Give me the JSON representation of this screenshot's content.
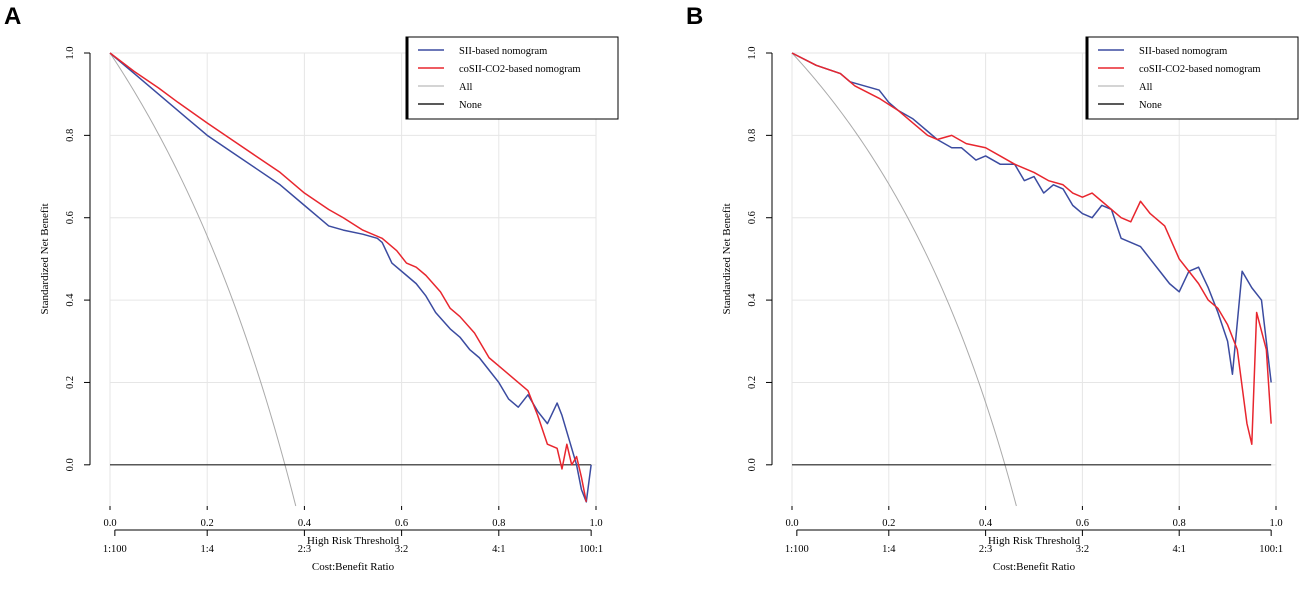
{
  "chart_data": [
    {
      "panel": "A",
      "type": "line",
      "xlabel": "High Risk Threshold",
      "ylabel": "Standardized Net Benefit",
      "x2label": "Cost:Benefit Ratio",
      "xlim": [
        0,
        1
      ],
      "ylim": [
        -0.1,
        1.0
      ],
      "xticks": [
        0.0,
        0.2,
        0.4,
        0.6,
        0.8,
        1.0
      ],
      "xtick_labels": [
        "0.0",
        "0.2",
        "0.4",
        "0.6",
        "0.8",
        "1.0"
      ],
      "yticks": [
        0.0,
        0.2,
        0.4,
        0.6,
        0.8,
        1.0
      ],
      "ytick_labels": [
        "0.0",
        "0.2",
        "0.4",
        "0.6",
        "0.8",
        "1.0"
      ],
      "cost_benefit_ticks": [
        0.01,
        0.2,
        0.4,
        0.6,
        0.8,
        0.99
      ],
      "cost_benefit_labels": [
        "1:100",
        "1:4",
        "2:3",
        "3:2",
        "4:1",
        "100:1"
      ],
      "grid": true,
      "legend_position": "top-right",
      "all_prevalence": 0.36,
      "series": [
        {
          "name": "SII-based nomogram",
          "color": "#3b4ba0",
          "x": [
            0.0,
            0.05,
            0.1,
            0.13,
            0.16,
            0.2,
            0.25,
            0.3,
            0.35,
            0.4,
            0.43,
            0.45,
            0.48,
            0.52,
            0.55,
            0.56,
            0.58,
            0.61,
            0.63,
            0.65,
            0.67,
            0.7,
            0.72,
            0.74,
            0.76,
            0.78,
            0.8,
            0.82,
            0.84,
            0.86,
            0.88,
            0.9,
            0.92,
            0.93,
            0.95,
            0.96,
            0.97,
            0.98,
            0.99
          ],
          "y": [
            1.0,
            0.95,
            0.9,
            0.87,
            0.84,
            0.8,
            0.76,
            0.72,
            0.68,
            0.63,
            0.6,
            0.58,
            0.57,
            0.56,
            0.55,
            0.54,
            0.49,
            0.46,
            0.44,
            0.41,
            0.37,
            0.33,
            0.31,
            0.28,
            0.26,
            0.23,
            0.2,
            0.16,
            0.14,
            0.17,
            0.13,
            0.1,
            0.15,
            0.12,
            0.04,
            0.0,
            -0.06,
            -0.09,
            0.0
          ]
        },
        {
          "name": "coSII-CO2-based nomogram",
          "color": "#e8262e",
          "x": [
            0.0,
            0.05,
            0.1,
            0.14,
            0.2,
            0.25,
            0.3,
            0.35,
            0.4,
            0.45,
            0.48,
            0.52,
            0.56,
            0.59,
            0.61,
            0.63,
            0.65,
            0.68,
            0.7,
            0.72,
            0.75,
            0.78,
            0.8,
            0.82,
            0.84,
            0.86,
            0.88,
            0.9,
            0.92,
            0.93,
            0.94,
            0.95,
            0.96,
            0.97,
            0.98
          ],
          "y": [
            1.0,
            0.955,
            0.915,
            0.88,
            0.83,
            0.79,
            0.75,
            0.71,
            0.66,
            0.62,
            0.6,
            0.57,
            0.55,
            0.52,
            0.49,
            0.48,
            0.46,
            0.42,
            0.38,
            0.36,
            0.32,
            0.26,
            0.24,
            0.22,
            0.2,
            0.18,
            0.12,
            0.05,
            0.04,
            -0.01,
            0.05,
            0.0,
            0.02,
            -0.03,
            -0.09
          ]
        },
        {
          "name": "All",
          "color": "#aaaaaa"
        },
        {
          "name": "None",
          "color": "#222222"
        }
      ]
    },
    {
      "panel": "B",
      "type": "line",
      "xlabel": "High Risk Threshold",
      "ylabel": "Standardized Net Benefit",
      "x2label": "Cost:Benefit Ratio",
      "xlim": [
        0,
        1
      ],
      "ylim": [
        -0.1,
        1.0
      ],
      "xticks": [
        0.0,
        0.2,
        0.4,
        0.6,
        0.8,
        1.0
      ],
      "xtick_labels": [
        "0.0",
        "0.2",
        "0.4",
        "0.6",
        "0.8",
        "1.0"
      ],
      "yticks": [
        0.0,
        0.2,
        0.4,
        0.6,
        0.8,
        1.0
      ],
      "ytick_labels": [
        "0.0",
        "0.2",
        "0.4",
        "0.6",
        "0.8",
        "1.0"
      ],
      "cost_benefit_ticks": [
        0.01,
        0.2,
        0.4,
        0.6,
        0.8,
        0.99
      ],
      "cost_benefit_labels": [
        "1:100",
        "1:4",
        "2:3",
        "3:2",
        "4:1",
        "100:1"
      ],
      "grid": true,
      "legend_position": "top-right",
      "all_prevalence": 0.44,
      "series": [
        {
          "name": "SII-based nomogram",
          "color": "#3b4ba0",
          "x": [
            0.0,
            0.05,
            0.1,
            0.12,
            0.15,
            0.18,
            0.2,
            0.22,
            0.25,
            0.28,
            0.3,
            0.33,
            0.35,
            0.38,
            0.4,
            0.43,
            0.46,
            0.48,
            0.5,
            0.52,
            0.54,
            0.56,
            0.58,
            0.6,
            0.62,
            0.64,
            0.66,
            0.68,
            0.7,
            0.72,
            0.74,
            0.76,
            0.78,
            0.8,
            0.82,
            0.84,
            0.86,
            0.88,
            0.9,
            0.91,
            0.93,
            0.95,
            0.97,
            0.99
          ],
          "y": [
            1.0,
            0.97,
            0.95,
            0.93,
            0.92,
            0.91,
            0.88,
            0.86,
            0.84,
            0.81,
            0.79,
            0.77,
            0.77,
            0.74,
            0.75,
            0.73,
            0.73,
            0.69,
            0.7,
            0.66,
            0.68,
            0.67,
            0.63,
            0.61,
            0.6,
            0.63,
            0.62,
            0.55,
            0.54,
            0.53,
            0.5,
            0.47,
            0.44,
            0.42,
            0.47,
            0.48,
            0.43,
            0.37,
            0.3,
            0.22,
            0.47,
            0.43,
            0.4,
            0.2
          ]
        },
        {
          "name": "coSII-CO2-based nomogram",
          "color": "#e8262e",
          "x": [
            0.0,
            0.05,
            0.1,
            0.13,
            0.18,
            0.22,
            0.25,
            0.28,
            0.3,
            0.33,
            0.36,
            0.4,
            0.43,
            0.46,
            0.5,
            0.53,
            0.56,
            0.58,
            0.6,
            0.62,
            0.64,
            0.66,
            0.68,
            0.7,
            0.72,
            0.74,
            0.77,
            0.8,
            0.82,
            0.84,
            0.86,
            0.88,
            0.9,
            0.92,
            0.94,
            0.95,
            0.96,
            0.98,
            0.99
          ],
          "y": [
            1.0,
            0.97,
            0.95,
            0.92,
            0.89,
            0.86,
            0.83,
            0.8,
            0.79,
            0.8,
            0.78,
            0.77,
            0.75,
            0.73,
            0.71,
            0.69,
            0.68,
            0.66,
            0.65,
            0.66,
            0.64,
            0.62,
            0.6,
            0.59,
            0.64,
            0.61,
            0.58,
            0.5,
            0.47,
            0.44,
            0.4,
            0.38,
            0.34,
            0.28,
            0.1,
            0.05,
            0.37,
            0.28,
            0.1
          ]
        },
        {
          "name": "All",
          "color": "#aaaaaa"
        },
        {
          "name": "None",
          "color": "#222222"
        }
      ]
    }
  ]
}
